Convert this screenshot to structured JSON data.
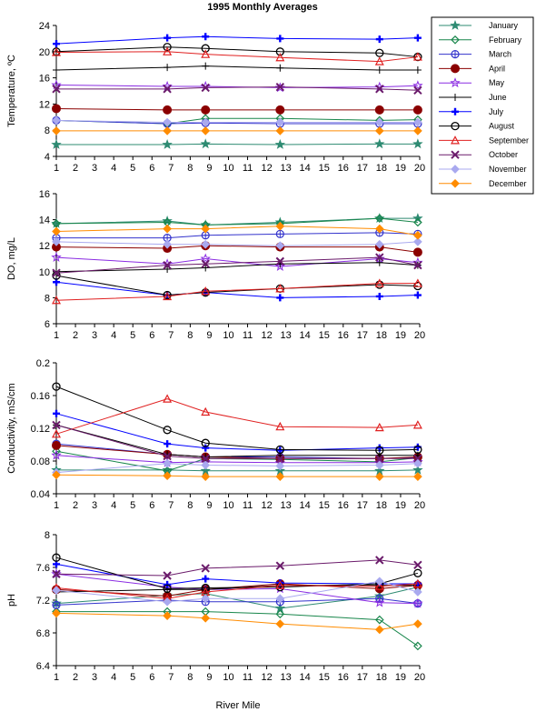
{
  "title": "1995 Monthly Averages",
  "xlabel": "River Mile",
  "chart_data": {
    "type": "line",
    "title": "1995 Monthly Averages",
    "xlabel": "River Mile",
    "xlim": [
      1,
      20
    ],
    "xticks": [
      1,
      2,
      3,
      4,
      5,
      6,
      7,
      8,
      9,
      10,
      11,
      12,
      13,
      14,
      15,
      16,
      17,
      18,
      19,
      20
    ],
    "x": [
      1,
      6.8,
      8.8,
      12.7,
      17.9,
      19.9
    ],
    "legend_position": "top-right",
    "series_style": [
      {
        "name": "January",
        "color": "#2e8b72",
        "marker": "star"
      },
      {
        "name": "February",
        "color": "#18864b",
        "marker": "diamond-open"
      },
      {
        "name": "March",
        "color": "#3333cc",
        "marker": "circle-plus"
      },
      {
        "name": "April",
        "color": "#8b0000",
        "marker": "circle-filled"
      },
      {
        "name": "May",
        "color": "#8a2be2",
        "marker": "star-open"
      },
      {
        "name": "June",
        "color": "#000000",
        "marker": "plus"
      },
      {
        "name": "July",
        "color": "#0000ff",
        "marker": "plus-bold"
      },
      {
        "name": "August",
        "color": "#000000",
        "marker": "circle-open"
      },
      {
        "name": "September",
        "color": "#e02020",
        "marker": "triangle-open"
      },
      {
        "name": "October",
        "color": "#6a1a6a",
        "marker": "x"
      },
      {
        "name": "November",
        "color": "#a9a9ef",
        "marker": "diamond-filled"
      },
      {
        "name": "December",
        "color": "#ff8c00",
        "marker": "diamond-filled"
      }
    ],
    "panels": [
      {
        "ylabel": "Temperature, ºC",
        "ylim": [
          4,
          24
        ],
        "yticks": [
          "4",
          "8",
          "12",
          "16",
          "20",
          "24"
        ],
        "series": [
          {
            "name": "January",
            "values": [
              5.8,
              5.8,
              5.9,
              5.8,
              5.9,
              5.9
            ]
          },
          {
            "name": "February",
            "values": [
              9.5,
              9.0,
              9.8,
              9.8,
              9.5,
              9.6
            ]
          },
          {
            "name": "March",
            "values": [
              9.5,
              9.0,
              9.1,
              9.0,
              9.0,
              9.0
            ]
          },
          {
            "name": "April",
            "values": [
              11.3,
              11.1,
              11.1,
              11.1,
              11.1,
              11.1
            ]
          },
          {
            "name": "May",
            "values": [
              14.9,
              14.7,
              14.7,
              14.5,
              14.6,
              14.8
            ]
          },
          {
            "name": "June",
            "values": [
              17.2,
              17.6,
              17.8,
              17.5,
              17.2,
              17.2
            ]
          },
          {
            "name": "July",
            "values": [
              21.2,
              22.1,
              22.3,
              22.0,
              21.9,
              22.1
            ]
          },
          {
            "name": "August",
            "values": [
              20.0,
              20.7,
              20.5,
              20.0,
              19.8,
              19.2
            ]
          },
          {
            "name": "September",
            "values": [
              19.9,
              20.0,
              19.6,
              19.1,
              18.5,
              19.2
            ]
          },
          {
            "name": "October",
            "values": [
              14.3,
              14.3,
              14.5,
              14.6,
              14.3,
              14.1
            ]
          },
          {
            "name": "November",
            "values": [
              9.5,
              9.2,
              9.2,
              9.2,
              9.2,
              9.2
            ]
          },
          {
            "name": "December",
            "values": [
              7.9,
              7.9,
              7.9,
              7.9,
              7.9,
              7.9
            ]
          }
        ]
      },
      {
        "ylabel": "DO, mg/L",
        "ylim": [
          6,
          16
        ],
        "yticks": [
          "6",
          "8",
          "10",
          "12",
          "14",
          "16"
        ],
        "series": [
          {
            "name": "January",
            "values": [
              13.7,
              13.9,
              13.6,
              13.8,
              14.1,
              14.1
            ]
          },
          {
            "name": "February",
            "values": [
              13.7,
              13.8,
              13.6,
              13.7,
              14.1,
              13.8
            ]
          },
          {
            "name": "March",
            "values": [
              12.6,
              12.6,
              12.8,
              12.9,
              13.0,
              12.9
            ]
          },
          {
            "name": "April",
            "values": [
              11.9,
              11.8,
              12.0,
              11.9,
              11.9,
              11.5
            ]
          },
          {
            "name": "May",
            "values": [
              11.1,
              10.6,
              11.0,
              10.4,
              11.0,
              10.7
            ]
          },
          {
            "name": "June",
            "values": [
              10.0,
              10.2,
              10.3,
              10.6,
              10.7,
              10.5
            ]
          },
          {
            "name": "July",
            "values": [
              9.2,
              8.2,
              8.4,
              8.0,
              8.1,
              8.2
            ]
          },
          {
            "name": "August",
            "values": [
              9.7,
              8.2,
              8.4,
              8.7,
              9.0,
              8.9
            ]
          },
          {
            "name": "September",
            "values": [
              7.8,
              8.1,
              8.5,
              8.7,
              9.1,
              9.1
            ]
          },
          {
            "name": "October",
            "values": [
              9.9,
              10.5,
              10.6,
              10.8,
              11.1,
              10.5
            ]
          },
          {
            "name": "November",
            "values": [
              12.3,
              12.1,
              12.1,
              12.0,
              12.1,
              12.3
            ]
          },
          {
            "name": "December",
            "values": [
              13.1,
              13.3,
              13.3,
              13.5,
              13.3,
              12.8
            ]
          }
        ]
      },
      {
        "ylabel": "Conductivity, mS/cm",
        "ylim": [
          0.04,
          0.2
        ],
        "yticks": [
          "0.04",
          "0.08",
          "0.12",
          "0.16",
          "0.2"
        ],
        "series": [
          {
            "name": "January",
            "values": [
              0.069,
              0.069,
              0.068,
              0.068,
              0.068,
              0.069
            ]
          },
          {
            "name": "February",
            "values": [
              0.092,
              0.068,
              0.083,
              0.082,
              0.079,
              0.084
            ]
          },
          {
            "name": "March",
            "values": [
              0.101,
              0.088,
              0.085,
              0.085,
              0.083,
              0.084
            ]
          },
          {
            "name": "April",
            "values": [
              0.099,
              0.088,
              0.085,
              0.083,
              0.083,
              0.085
            ]
          },
          {
            "name": "May",
            "values": [
              0.087,
              0.078,
              0.079,
              0.078,
              0.078,
              0.079
            ]
          },
          {
            "name": "June",
            "values": [
              0.124,
              0.088,
              0.085,
              0.087,
              0.087,
              0.087
            ]
          },
          {
            "name": "July",
            "values": [
              0.138,
              0.101,
              0.096,
              0.093,
              0.096,
              0.097
            ]
          },
          {
            "name": "August",
            "values": [
              0.171,
              0.118,
              0.102,
              0.094,
              0.093,
              0.094
            ]
          },
          {
            "name": "September",
            "values": [
              0.113,
              0.156,
              0.14,
              0.122,
              0.121,
              0.124
            ]
          },
          {
            "name": "October",
            "values": [
              0.124,
              0.086,
              0.083,
              0.083,
              0.083,
              0.083
            ]
          },
          {
            "name": "November",
            "values": [
              0.066,
              0.077,
              0.075,
              0.074,
              0.075,
              0.077
            ]
          },
          {
            "name": "December",
            "values": [
              0.063,
              0.062,
              0.061,
              0.061,
              0.061,
              0.061
            ]
          }
        ]
      },
      {
        "ylabel": "pH",
        "ylim": [
          6.4,
          8
        ],
        "yticks": [
          "6.4",
          "6.8",
          "7.2",
          "7.6",
          "8"
        ],
        "series": [
          {
            "name": "January",
            "values": [
              7.16,
              7.26,
              7.28,
              7.1,
              7.25,
              7.36
            ]
          },
          {
            "name": "February",
            "values": [
              7.06,
              7.06,
              7.06,
              7.03,
              6.96,
              6.64
            ]
          },
          {
            "name": "March",
            "values": [
              7.14,
              7.2,
              7.18,
              7.18,
              7.22,
              7.16
            ]
          },
          {
            "name": "April",
            "values": [
              7.33,
              7.25,
              7.33,
              7.4,
              7.34,
              7.38
            ]
          },
          {
            "name": "May",
            "values": [
              7.52,
              7.36,
              7.33,
              7.34,
              7.17,
              7.16
            ]
          },
          {
            "name": "June",
            "values": [
              7.3,
              7.33,
              7.33,
              7.38,
              7.38,
              7.38
            ]
          },
          {
            "name": "July",
            "values": [
              7.64,
              7.39,
              7.46,
              7.41,
              7.4,
              7.4
            ]
          },
          {
            "name": "August",
            "values": [
              7.72,
              7.34,
              7.35,
              7.36,
              7.4,
              7.53
            ]
          },
          {
            "name": "September",
            "values": [
              7.35,
              7.22,
              7.3,
              7.38,
              7.37,
              7.4
            ]
          },
          {
            "name": "October",
            "values": [
              7.52,
              7.5,
              7.59,
              7.62,
              7.69,
              7.63
            ]
          },
          {
            "name": "November",
            "values": [
              7.32,
              7.18,
              7.22,
              7.22,
              7.43,
              7.3
            ]
          },
          {
            "name": "December",
            "values": [
              7.04,
              7.01,
              6.98,
              6.91,
              6.84,
              6.91
            ]
          }
        ]
      }
    ]
  }
}
